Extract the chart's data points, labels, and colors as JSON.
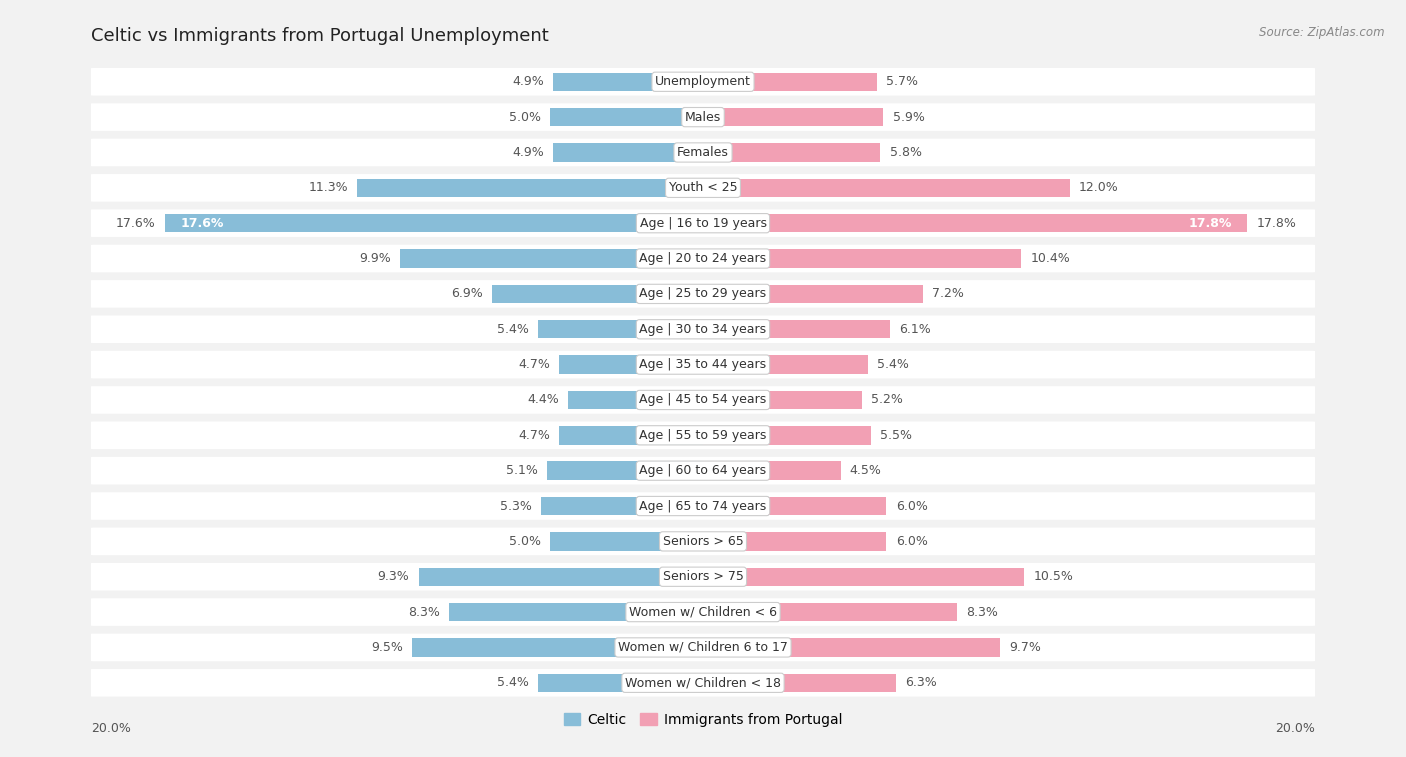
{
  "title": "Celtic vs Immigrants from Portugal Unemployment",
  "source": "Source: ZipAtlas.com",
  "categories": [
    "Unemployment",
    "Males",
    "Females",
    "Youth < 25",
    "Age | 16 to 19 years",
    "Age | 20 to 24 years",
    "Age | 25 to 29 years",
    "Age | 30 to 34 years",
    "Age | 35 to 44 years",
    "Age | 45 to 54 years",
    "Age | 55 to 59 years",
    "Age | 60 to 64 years",
    "Age | 65 to 74 years",
    "Seniors > 65",
    "Seniors > 75",
    "Women w/ Children < 6",
    "Women w/ Children 6 to 17",
    "Women w/ Children < 18"
  ],
  "celtic_values": [
    4.9,
    5.0,
    4.9,
    11.3,
    17.6,
    9.9,
    6.9,
    5.4,
    4.7,
    4.4,
    4.7,
    5.1,
    5.3,
    5.0,
    9.3,
    8.3,
    9.5,
    5.4
  ],
  "portugal_values": [
    5.7,
    5.9,
    5.8,
    12.0,
    17.8,
    10.4,
    7.2,
    6.1,
    5.4,
    5.2,
    5.5,
    4.5,
    6.0,
    6.0,
    10.5,
    8.3,
    9.7,
    6.3
  ],
  "celtic_color": "#88bdd8",
  "celtic_color_strong": "#5b9ec9",
  "portugal_color": "#f2a0b4",
  "portugal_color_strong": "#e8688a",
  "background_color": "#f2f2f2",
  "row_bg_color": "#ffffff",
  "max_value": 20.0,
  "bar_height": 0.52,
  "label_fontsize": 9.0,
  "category_fontsize": 9.0,
  "title_fontsize": 13,
  "bottom_label": "20.0%"
}
